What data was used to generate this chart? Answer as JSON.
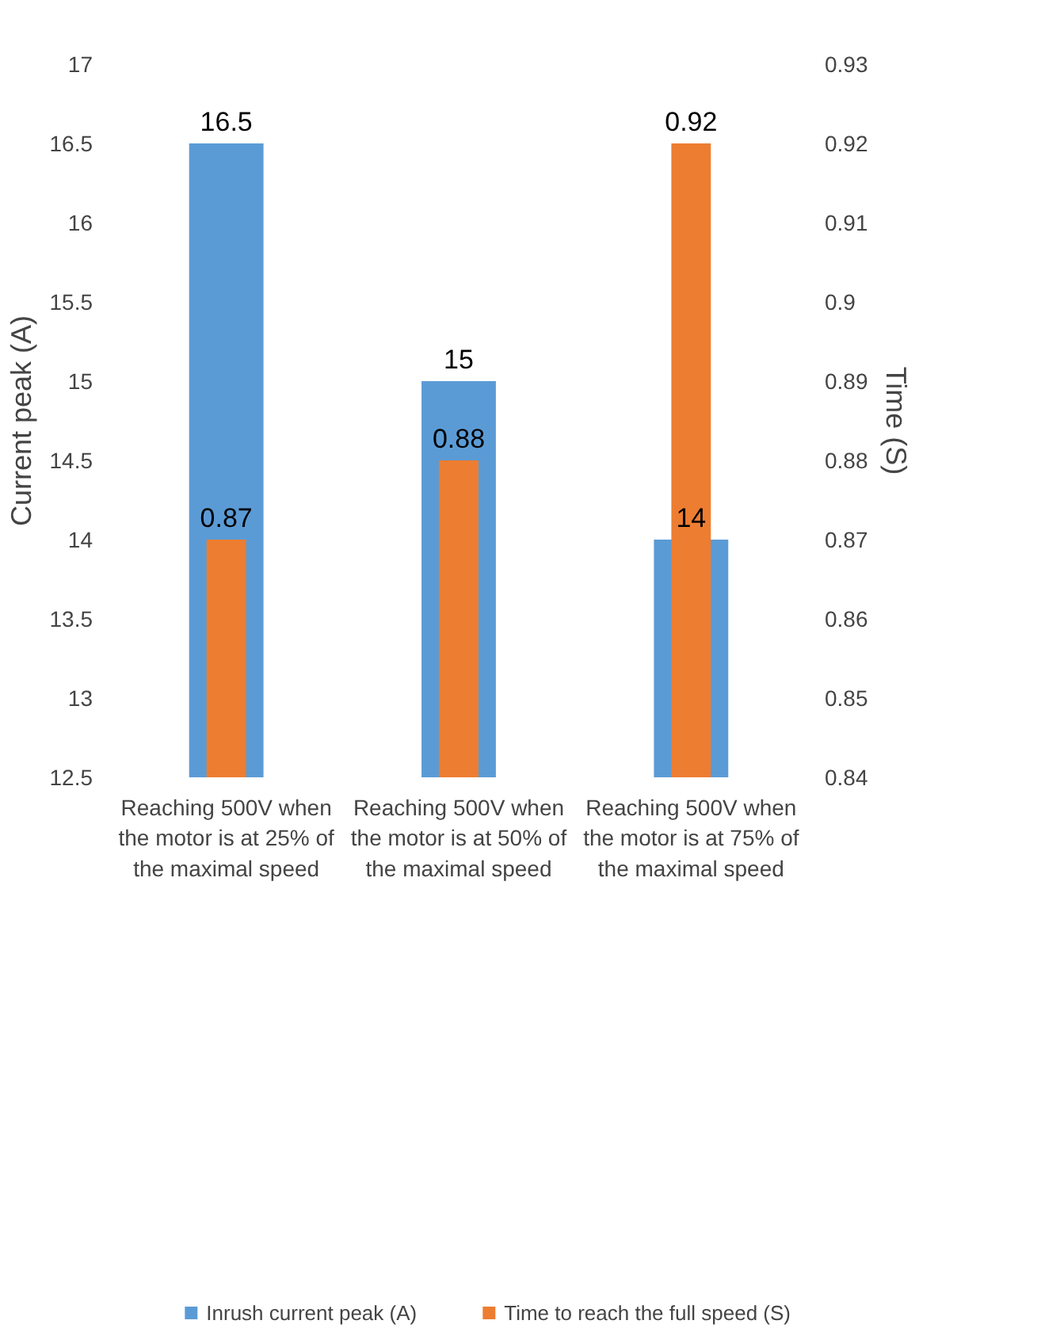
{
  "chart_data": {
    "type": "bar",
    "ylabel": "Current peak (A)",
    "y2label": "Time (S)",
    "categories": [
      "Reaching 500V when\nthe motor is at 25% of\nthe maximal speed",
      "Reaching 500V when\nthe motor is at 50% of\nthe maximal speed",
      "Reaching 500V when\nthe motor is at 75% of\nthe maximal speed"
    ],
    "series": [
      {
        "name": "Inrush current peak (A)",
        "color": "#5b9bd5",
        "values": [
          16.5,
          15,
          14
        ]
      },
      {
        "name": "Time to reach the full speed (S)",
        "color": "#ed7d31",
        "values": [
          0.87,
          0.88,
          0.92
        ],
        "axis": "y2"
      }
    ],
    "ylim": [
      12.5,
      17
    ],
    "yticks": [
      12.5,
      13,
      13.5,
      14,
      14.5,
      15,
      15.5,
      16,
      16.5,
      17
    ],
    "y2lim": [
      0.84,
      0.93
    ],
    "y2ticks": [
      0.84,
      0.85,
      0.86,
      0.87,
      0.88,
      0.89,
      0.9,
      0.91,
      0.92,
      0.93
    ],
    "data_labels": true,
    "grid": false,
    "legend": "bottom"
  }
}
